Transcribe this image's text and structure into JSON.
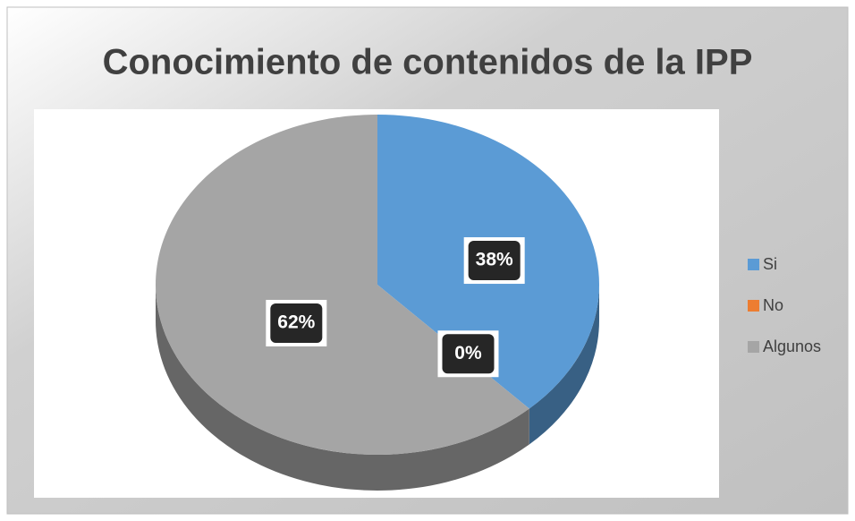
{
  "chart_data": {
    "type": "pie",
    "title": "Conocimiento de contenidos de la IPP",
    "categories": [
      "Si",
      "No",
      "Algunos"
    ],
    "values": [
      38,
      0,
      62
    ],
    "value_labels": [
      "38%",
      "0%",
      "62%"
    ],
    "colors": [
      "#5b9bd5",
      "#ed7d31",
      "#a5a5a5"
    ],
    "legend": "right"
  }
}
